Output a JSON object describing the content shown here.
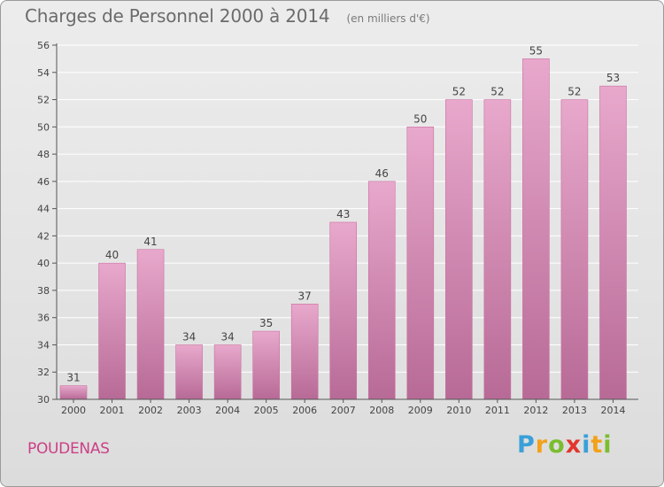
{
  "header": {
    "title": "Charges de Personnel 2000 à 2014",
    "subtitle": "(en milliers d'€)"
  },
  "footer": {
    "town": "POUDENAS",
    "logo_text": "Proxiti"
  },
  "colors": {
    "bar_top": "#e8a8cc",
    "bar_bottom": "#b76a96",
    "bar_stroke": "#c9719f",
    "grid": "#ffffff",
    "axis": "#555555",
    "town": "#cc3f86"
  },
  "chart_data": {
    "type": "bar",
    "title": "Charges de Personnel 2000 à 2014",
    "subtitle": "(en milliers d'€)",
    "xlabel": "",
    "ylabel": "",
    "categories": [
      "2000",
      "2001",
      "2002",
      "2003",
      "2004",
      "2005",
      "2006",
      "2007",
      "2008",
      "2009",
      "2010",
      "2011",
      "2012",
      "2013",
      "2014"
    ],
    "values": [
      31,
      40,
      41,
      34,
      34,
      35,
      37,
      43,
      46,
      50,
      52,
      52,
      55,
      52,
      53
    ],
    "ylim": [
      30,
      56
    ],
    "yticks": [
      30,
      32,
      34,
      36,
      38,
      40,
      42,
      44,
      46,
      48,
      50,
      52,
      54,
      56
    ],
    "grid": true,
    "legend": "none",
    "data_labels": true
  }
}
